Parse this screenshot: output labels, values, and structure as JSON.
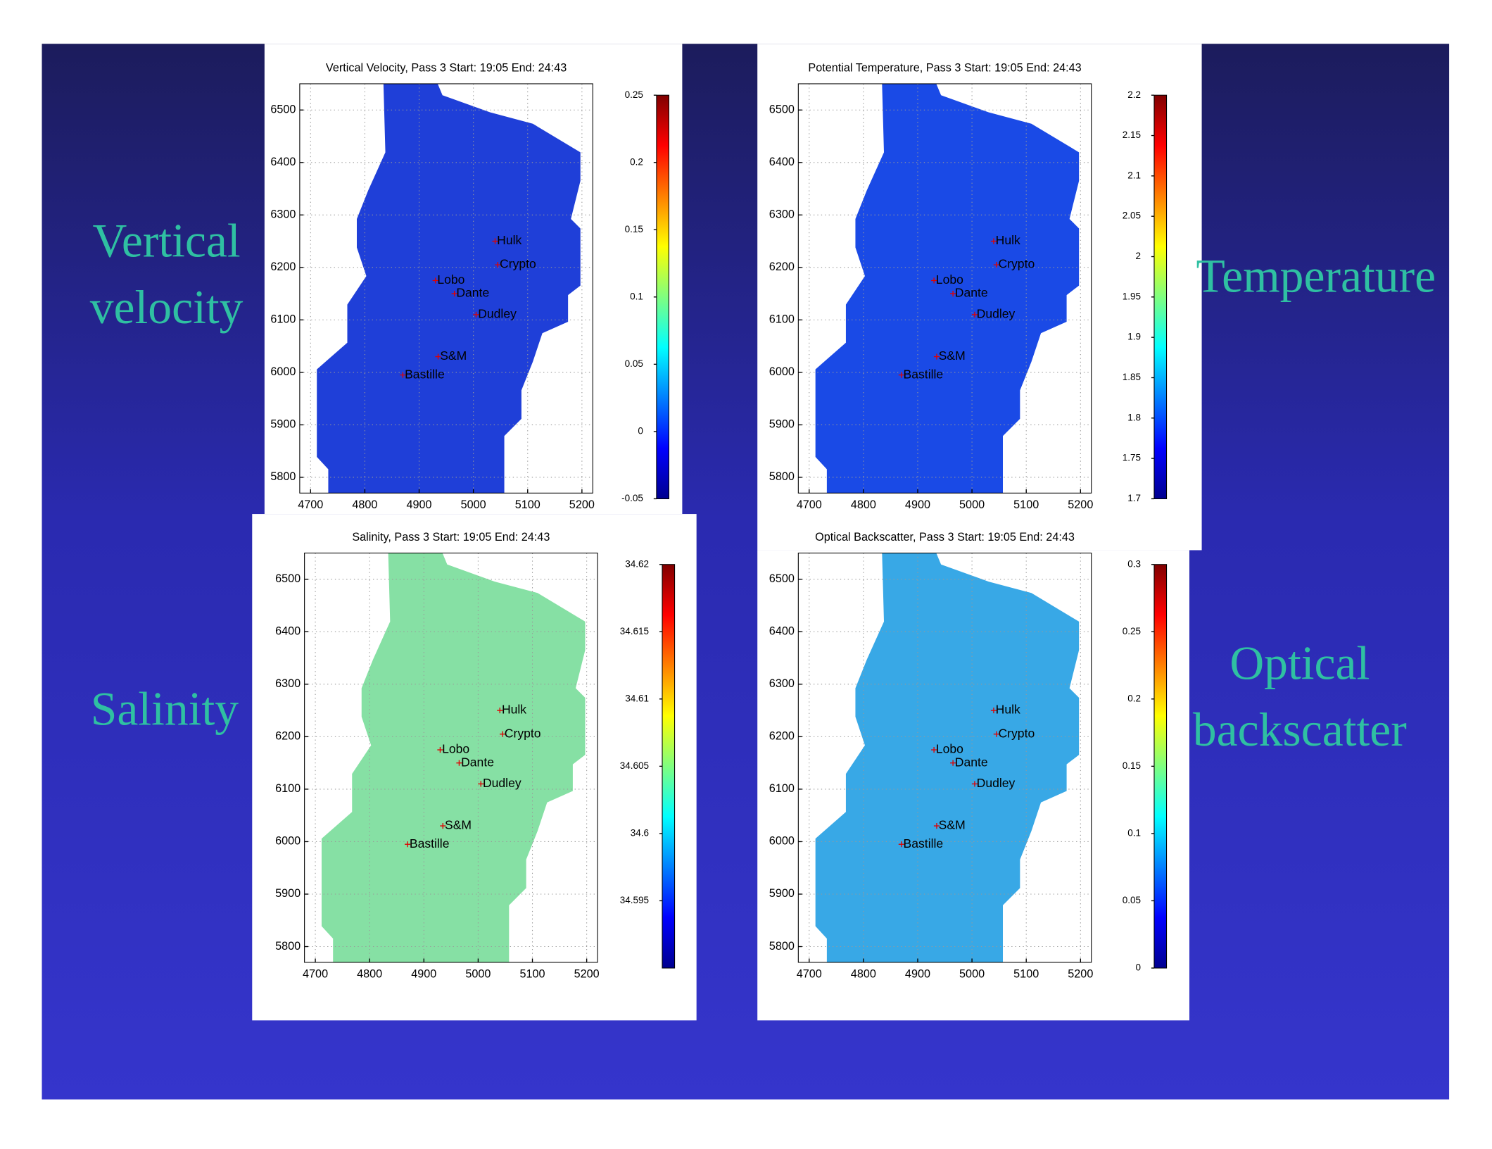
{
  "side_labels": [
    {
      "lines": [
        "Vertical",
        "velocity"
      ]
    },
    {
      "lines": [
        "Temperature"
      ]
    },
    {
      "lines": [
        "Salinity"
      ]
    },
    {
      "lines": [
        "Optical",
        "backscatter"
      ]
    }
  ],
  "chart_data": [
    {
      "type": "heatmap",
      "title": "Vertical Velocity, Pass 3 Start: 19:05 End: 24:43",
      "colormap": "jet",
      "field_color": "#1f3fd8",
      "grid": true,
      "xlim": [
        4680,
        5220
      ],
      "ylim": [
        5770,
        6550
      ],
      "xticks": [
        4700,
        4800,
        4900,
        5000,
        5100,
        5200
      ],
      "yticks": [
        5800,
        5900,
        6000,
        6100,
        6200,
        6300,
        6400,
        6500
      ],
      "clim": [
        -0.05,
        0.25
      ],
      "cticks": [
        -0.05,
        0,
        0.05,
        0.1,
        0.15,
        0.2,
        0.25
      ],
      "sites": [
        {
          "label": "Hulk",
          "x": 5040,
          "y": 6250
        },
        {
          "label": "Crypto",
          "x": 5045,
          "y": 6205
        },
        {
          "label": "Lobo",
          "x": 4930,
          "y": 6175
        },
        {
          "label": "Dante",
          "x": 4965,
          "y": 6150
        },
        {
          "label": "Dudley",
          "x": 5005,
          "y": 6110
        },
        {
          "label": "S&M",
          "x": 4935,
          "y": 6030
        },
        {
          "label": "Bastille",
          "x": 4870,
          "y": 5995
        }
      ]
    },
    {
      "type": "heatmap",
      "title": "Potential Temperature, Pass 3 Start: 19:05 End: 24:43",
      "colormap": "jet",
      "field_color": "#1a4ae6",
      "grid": true,
      "xlim": [
        4680,
        5220
      ],
      "ylim": [
        5770,
        6550
      ],
      "xticks": [
        4700,
        4800,
        4900,
        5000,
        5100,
        5200
      ],
      "yticks": [
        5800,
        5900,
        6000,
        6100,
        6200,
        6300,
        6400,
        6500
      ],
      "clim": [
        1.7,
        2.2
      ],
      "cticks": [
        1.7,
        1.75,
        1.8,
        1.85,
        1.9,
        1.95,
        2,
        2.05,
        2.1,
        2.15,
        2.2
      ],
      "sites": [
        {
          "label": "Hulk",
          "x": 5040,
          "y": 6250
        },
        {
          "label": "Crypto",
          "x": 5045,
          "y": 6205
        },
        {
          "label": "Lobo",
          "x": 4930,
          "y": 6175
        },
        {
          "label": "Dante",
          "x": 4965,
          "y": 6150
        },
        {
          "label": "Dudley",
          "x": 5005,
          "y": 6110
        },
        {
          "label": "S&M",
          "x": 4935,
          "y": 6030
        },
        {
          "label": "Bastille",
          "x": 4870,
          "y": 5995
        }
      ]
    },
    {
      "type": "heatmap",
      "title": "Salinity, Pass 3 Start: 19:05 End: 24:43",
      "colormap": "jet",
      "field_color": "#86e0a4",
      "grid": true,
      "xlim": [
        4680,
        5220
      ],
      "ylim": [
        5770,
        6550
      ],
      "xticks": [
        4700,
        4800,
        4900,
        5000,
        5100,
        5200
      ],
      "yticks": [
        5800,
        5900,
        6000,
        6100,
        6200,
        6300,
        6400,
        6500
      ],
      "clim": [
        34.59,
        34.62
      ],
      "cticks": [
        34.595,
        34.6,
        34.605,
        34.61,
        34.615,
        34.62
      ],
      "sites": [
        {
          "label": "Hulk",
          "x": 5040,
          "y": 6250
        },
        {
          "label": "Crypto",
          "x": 5045,
          "y": 6205
        },
        {
          "label": "Lobo",
          "x": 4930,
          "y": 6175
        },
        {
          "label": "Dante",
          "x": 4965,
          "y": 6150
        },
        {
          "label": "Dudley",
          "x": 5005,
          "y": 6110
        },
        {
          "label": "S&M",
          "x": 4935,
          "y": 6030
        },
        {
          "label": "Bastille",
          "x": 4870,
          "y": 5995
        }
      ]
    },
    {
      "type": "heatmap",
      "title": "Optical Backscatter, Pass 3 Start: 19:05 End: 24:43",
      "colormap": "jet",
      "field_color": "#38a8e6",
      "grid": true,
      "xlim": [
        4680,
        5220
      ],
      "ylim": [
        5770,
        6550
      ],
      "xticks": [
        4700,
        4800,
        4900,
        5000,
        5100,
        5200
      ],
      "yticks": [
        5800,
        5900,
        6000,
        6100,
        6200,
        6300,
        6400,
        6500
      ],
      "clim": [
        0,
        0.3
      ],
      "cticks": [
        0,
        0.05,
        0.1,
        0.15,
        0.2,
        0.25,
        0.3
      ],
      "sites": [
        {
          "label": "Hulk",
          "x": 5040,
          "y": 6250
        },
        {
          "label": "Crypto",
          "x": 5045,
          "y": 6205
        },
        {
          "label": "Lobo",
          "x": 4930,
          "y": 6175
        },
        {
          "label": "Dante",
          "x": 4965,
          "y": 6150
        },
        {
          "label": "Dudley",
          "x": 5005,
          "y": 6110
        },
        {
          "label": "S&M",
          "x": 4935,
          "y": 6030
        },
        {
          "label": "Bastille",
          "x": 4870,
          "y": 5995
        }
      ]
    }
  ]
}
